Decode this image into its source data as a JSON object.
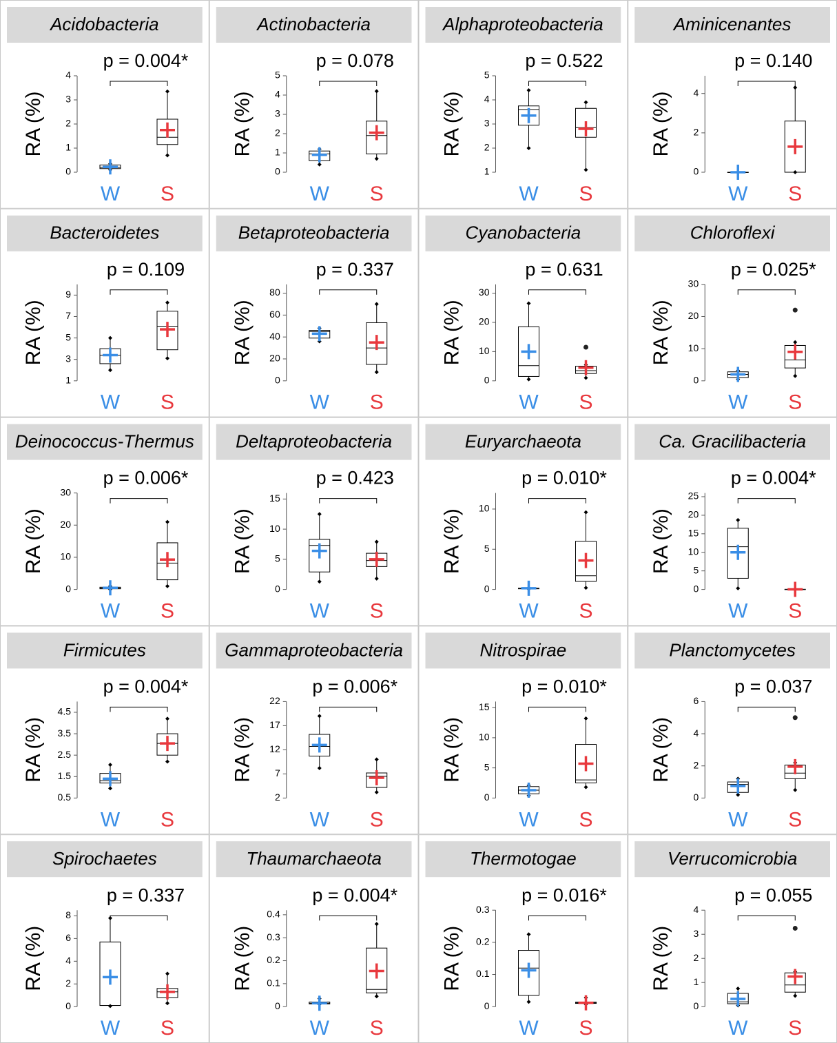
{
  "chart_data": [
    {
      "type": "box",
      "title": "Acidobacteria",
      "annotation": "p = 0.004*",
      "y_label": "RA (%)",
      "categories": [
        "W",
        "S"
      ],
      "ylim": [
        0,
        4
      ],
      "yticks": [
        0,
        1,
        2,
        3,
        4
      ],
      "boxes": [
        {
          "color": "#3a8ee6",
          "min": 0.1,
          "q1": 0.15,
          "median": 0.2,
          "q3": 0.3,
          "max": 0.35,
          "mean": 0.22,
          "outliers": []
        },
        {
          "color": "#e8383d",
          "min": 0.7,
          "q1": 1.15,
          "median": 1.45,
          "q3": 2.2,
          "max": 3.35,
          "mean": 1.75,
          "outliers": []
        }
      ]
    },
    {
      "type": "box",
      "title": "Actinobacteria",
      "annotation": "p = 0.078",
      "y_label": "RA (%)",
      "categories": [
        "W",
        "S"
      ],
      "ylim": [
        0,
        5
      ],
      "yticks": [
        0,
        1,
        2,
        3,
        4,
        5
      ],
      "boxes": [
        {
          "color": "#3a8ee6",
          "min": 0.4,
          "q1": 0.6,
          "median": 0.95,
          "q3": 1.1,
          "max": 1.2,
          "mean": 0.9,
          "outliers": []
        },
        {
          "color": "#e8383d",
          "min": 0.7,
          "q1": 0.95,
          "median": 1.9,
          "q3": 2.65,
          "max": 4.2,
          "mean": 2.05,
          "outliers": []
        }
      ]
    },
    {
      "type": "box",
      "title": "Alphaproteobacteria",
      "annotation": "p = 0.522",
      "y_label": "RA (%)",
      "categories": [
        "W",
        "S"
      ],
      "ylim": [
        1,
        5
      ],
      "yticks": [
        1,
        2,
        3,
        4,
        5
      ],
      "boxes": [
        {
          "color": "#3a8ee6",
          "min": 2.0,
          "q1": 2.95,
          "median": 3.6,
          "q3": 3.75,
          "max": 4.4,
          "mean": 3.35,
          "outliers": []
        },
        {
          "color": "#e8383d",
          "min": 1.1,
          "q1": 2.45,
          "median": 2.85,
          "q3": 3.65,
          "max": 3.9,
          "mean": 2.8,
          "outliers": []
        }
      ]
    },
    {
      "type": "box",
      "title": "Aminicenantes",
      "annotation": "p = 0.140",
      "y_label": "RA (%)",
      "categories": [
        "W",
        "S"
      ],
      "ylim": [
        0,
        4.9
      ],
      "yticks": [
        0,
        2,
        4
      ],
      "boxes": [
        {
          "color": "#3a8ee6",
          "min": 0,
          "q1": 0,
          "median": 0,
          "q3": 0,
          "max": 0,
          "mean": 0,
          "outliers": []
        },
        {
          "color": "#e8383d",
          "min": 0,
          "q1": 0,
          "median": 0,
          "q3": 2.6,
          "max": 4.3,
          "mean": 1.3,
          "outliers": []
        }
      ]
    },
    {
      "type": "box",
      "title": "Bacteroidetes",
      "annotation": "p = 0.109",
      "y_label": "RA (%)",
      "categories": [
        "W",
        "S"
      ],
      "ylim": [
        1,
        10
      ],
      "yticks": [
        1,
        3,
        5,
        7,
        9
      ],
      "boxes": [
        {
          "color": "#3a8ee6",
          "min": 2.0,
          "q1": 2.6,
          "median": 3.4,
          "q3": 4.0,
          "max": 5.0,
          "mean": 3.4,
          "outliers": []
        },
        {
          "color": "#e8383d",
          "min": 3.1,
          "q1": 3.9,
          "median": 6.1,
          "q3": 7.5,
          "max": 8.3,
          "mean": 5.8,
          "outliers": []
        }
      ]
    },
    {
      "type": "box",
      "title": "Betaproteobacteria",
      "annotation": "p = 0.337",
      "y_label": "RA (%)",
      "categories": [
        "W",
        "S"
      ],
      "ylim": [
        0,
        88
      ],
      "yticks": [
        0,
        20,
        40,
        60,
        80
      ],
      "boxes": [
        {
          "color": "#3a8ee6",
          "min": 36,
          "q1": 39,
          "median": 45,
          "q3": 46,
          "max": 48,
          "mean": 43,
          "outliers": []
        },
        {
          "color": "#e8383d",
          "min": 8,
          "q1": 15,
          "median": 30,
          "q3": 53,
          "max": 70,
          "mean": 35,
          "outliers": []
        }
      ]
    },
    {
      "type": "box",
      "title": "Cyanobacteria",
      "annotation": "p = 0.631",
      "y_label": "RA (%)",
      "categories": [
        "W",
        "S"
      ],
      "ylim": [
        0,
        33
      ],
      "yticks": [
        0,
        10,
        20,
        30
      ],
      "boxes": [
        {
          "color": "#3a8ee6",
          "min": 0.5,
          "q1": 1.5,
          "median": 5.2,
          "q3": 18.5,
          "max": 26.5,
          "mean": 10,
          "outliers": []
        },
        {
          "color": "#e8383d",
          "min": 1,
          "q1": 2.5,
          "median": 3.5,
          "q3": 5,
          "max": 5.5,
          "mean": 4.5,
          "outliers": [
            11.5
          ]
        }
      ]
    },
    {
      "type": "box",
      "title": "Chloroflexi",
      "annotation": "p = 0.025*",
      "y_label": "RA (%)",
      "categories": [
        "W",
        "S"
      ],
      "ylim": [
        0,
        30
      ],
      "yticks": [
        0,
        10,
        20,
        30
      ],
      "boxes": [
        {
          "color": "#3a8ee6",
          "min": 0.5,
          "q1": 1,
          "median": 2,
          "q3": 2.8,
          "max": 3.2,
          "mean": 2,
          "outliers": []
        },
        {
          "color": "#e8383d",
          "min": 1.5,
          "q1": 4,
          "median": 6.5,
          "q3": 11,
          "max": 12,
          "mean": 9,
          "outliers": [
            22
          ]
        }
      ]
    },
    {
      "type": "box",
      "title": "Deinococcus-Thermus",
      "annotation": "p = 0.006*",
      "y_label": "RA (%)",
      "categories": [
        "W",
        "S"
      ],
      "ylim": [
        0,
        30
      ],
      "yticks": [
        0,
        10,
        20,
        30
      ],
      "boxes": [
        {
          "color": "#3a8ee6",
          "min": 0,
          "q1": 0.2,
          "median": 0.4,
          "q3": 0.7,
          "max": 1,
          "mean": 0.5,
          "outliers": []
        },
        {
          "color": "#e8383d",
          "min": 1,
          "q1": 3,
          "median": 8.2,
          "q3": 14.5,
          "max": 21,
          "mean": 9.3,
          "outliers": []
        }
      ]
    },
    {
      "type": "box",
      "title": "Deltaproteobacteria",
      "annotation": "p = 0.423",
      "y_label": "RA (%)",
      "categories": [
        "W",
        "S"
      ],
      "ylim": [
        0,
        16
      ],
      "yticks": [
        0,
        5,
        10,
        15
      ],
      "boxes": [
        {
          "color": "#3a8ee6",
          "min": 1.3,
          "q1": 2.9,
          "median": 7.3,
          "q3": 8.3,
          "max": 12.5,
          "mean": 6.4,
          "outliers": []
        },
        {
          "color": "#e8383d",
          "min": 1.8,
          "q1": 3.8,
          "median": 4.8,
          "q3": 6,
          "max": 7.9,
          "mean": 5,
          "outliers": []
        }
      ]
    },
    {
      "type": "box",
      "title": "Euryarchaeota",
      "annotation": "p = 0.010*",
      "y_label": "RA (%)",
      "categories": [
        "W",
        "S"
      ],
      "ylim": [
        0,
        12
      ],
      "yticks": [
        0,
        5,
        10
      ],
      "boxes": [
        {
          "color": "#3a8ee6",
          "min": 0.05,
          "q1": 0.08,
          "median": 0.1,
          "q3": 0.15,
          "max": 0.2,
          "mean": 0.15,
          "outliers": []
        },
        {
          "color": "#e8383d",
          "min": 0.2,
          "q1": 1.0,
          "median": 1.7,
          "q3": 6,
          "max": 9.6,
          "mean": 3.6,
          "outliers": []
        }
      ]
    },
    {
      "type": "box",
      "title": "Ca. Gracilibacteria",
      "annotation": "p = 0.004*",
      "y_label": "RA (%)",
      "categories": [
        "W",
        "S"
      ],
      "ylim": [
        0,
        26
      ],
      "yticks": [
        0,
        5,
        10,
        15,
        20,
        25
      ],
      "boxes": [
        {
          "color": "#3a8ee6",
          "min": 0.3,
          "q1": 3,
          "median": 11.5,
          "q3": 16.5,
          "max": 18.7,
          "mean": 10,
          "outliers": []
        },
        {
          "color": "#e8383d",
          "min": 0,
          "q1": 0,
          "median": 0,
          "q3": 0.05,
          "max": 0.05,
          "mean": 0.02,
          "outliers": []
        }
      ]
    },
    {
      "type": "box",
      "title": "Firmicutes",
      "annotation": "p = 0.004*",
      "y_label": "RA (%)",
      "categories": [
        "W",
        "S"
      ],
      "ylim": [
        0.5,
        5
      ],
      "yticks": [
        0.5,
        1.5,
        2.5,
        3.5,
        4.5
      ],
      "boxes": [
        {
          "color": "#3a8ee6",
          "min": 0.95,
          "q1": 1.2,
          "median": 1.3,
          "q3": 1.65,
          "max": 2.05,
          "mean": 1.4,
          "outliers": []
        },
        {
          "color": "#e8383d",
          "min": 2.2,
          "q1": 2.5,
          "median": 3.05,
          "q3": 3.5,
          "max": 4.2,
          "mean": 3.05,
          "outliers": []
        }
      ]
    },
    {
      "type": "box",
      "title": "Gammaproteobacteria",
      "annotation": "p = 0.006*",
      "y_label": "RA (%)",
      "categories": [
        "W",
        "S"
      ],
      "ylim": [
        2,
        22
      ],
      "yticks": [
        2,
        7,
        12,
        17,
        22
      ],
      "boxes": [
        {
          "color": "#3a8ee6",
          "min": 8.2,
          "q1": 10.7,
          "median": 12.7,
          "q3": 15.2,
          "max": 19,
          "mean": 13,
          "outliers": []
        },
        {
          "color": "#e8383d",
          "min": 3.2,
          "q1": 4.2,
          "median": 6.5,
          "q3": 7.2,
          "max": 10,
          "mean": 6.2,
          "outliers": []
        }
      ]
    },
    {
      "type": "box",
      "title": "Nitrospirae",
      "annotation": "p = 0.010*",
      "y_label": "RA (%)",
      "categories": [
        "W",
        "S"
      ],
      "ylim": [
        0,
        16
      ],
      "yticks": [
        0,
        5,
        10,
        15
      ],
      "boxes": [
        {
          "color": "#3a8ee6",
          "min": 0.4,
          "q1": 0.7,
          "median": 1.3,
          "q3": 1.9,
          "max": 2.1,
          "mean": 1.3,
          "outliers": []
        },
        {
          "color": "#e8383d",
          "min": 1.8,
          "q1": 2.5,
          "median": 3,
          "q3": 8.9,
          "max": 13.2,
          "mean": 5.7,
          "outliers": []
        }
      ]
    },
    {
      "type": "box",
      "title": "Planctomycetes",
      "annotation": "p = 0.037",
      "y_label": "RA (%)",
      "categories": [
        "W",
        "S"
      ],
      "ylim": [
        0,
        6
      ],
      "yticks": [
        0,
        2,
        4,
        6
      ],
      "boxes": [
        {
          "color": "#3a8ee6",
          "min": 0.2,
          "q1": 0.35,
          "median": 0.85,
          "q3": 1.0,
          "max": 1.2,
          "mean": 0.75,
          "outliers": []
        },
        {
          "color": "#e8383d",
          "min": 0.5,
          "q1": 1.2,
          "median": 1.55,
          "q3": 2.05,
          "max": 2.2,
          "mean": 1.95,
          "outliers": [
            5
          ]
        }
      ]
    },
    {
      "type": "box",
      "title": "Spirochaetes",
      "annotation": "p = 0.337",
      "y_label": "RA (%)",
      "categories": [
        "W",
        "S"
      ],
      "ylim": [
        0,
        8.5
      ],
      "yticks": [
        0,
        2,
        4,
        6,
        8
      ],
      "boxes": [
        {
          "color": "#3a8ee6",
          "min": 0.05,
          "q1": 0.1,
          "median": 0.1,
          "q3": 5.7,
          "max": 7.8,
          "mean": 2.6,
          "outliers": []
        },
        {
          "color": "#e8383d",
          "min": 0.3,
          "q1": 0.8,
          "median": 1.3,
          "q3": 1.6,
          "max": 2.9,
          "mean": 1.3,
          "outliers": []
        }
      ]
    },
    {
      "type": "box",
      "title": "Thaumarchaeota",
      "annotation": "p = 0.004*",
      "y_label": "RA (%)",
      "categories": [
        "W",
        "S"
      ],
      "ylim": [
        0,
        0.42
      ],
      "yticks": [
        0,
        0.1,
        0.2,
        0.3,
        0.4
      ],
      "boxes": [
        {
          "color": "#3a8ee6",
          "min": 0.01,
          "q1": 0.012,
          "median": 0.015,
          "q3": 0.02,
          "max": 0.035,
          "mean": 0.015,
          "outliers": []
        },
        {
          "color": "#e8383d",
          "min": 0.045,
          "q1": 0.06,
          "median": 0.075,
          "q3": 0.255,
          "max": 0.36,
          "mean": 0.155,
          "outliers": []
        }
      ]
    },
    {
      "type": "box",
      "title": "Thermotogae",
      "annotation": "p = 0.016*",
      "y_label": "RA (%)",
      "categories": [
        "W",
        "S"
      ],
      "ylim": [
        0,
        0.3
      ],
      "yticks": [
        0,
        0.1,
        0.2,
        0.3
      ],
      "boxes": [
        {
          "color": "#3a8ee6",
          "min": 0.015,
          "q1": 0.035,
          "median": 0.12,
          "q3": 0.175,
          "max": 0.225,
          "mean": 0.113,
          "outliers": []
        },
        {
          "color": "#e8383d",
          "min": 0.007,
          "q1": 0.01,
          "median": 0.012,
          "q3": 0.014,
          "max": 0.028,
          "mean": 0.012,
          "outliers": []
        }
      ]
    },
    {
      "type": "box",
      "title": "Verrucomicrobia",
      "annotation": "p = 0.055",
      "y_label": "RA (%)",
      "categories": [
        "W",
        "S"
      ],
      "ylim": [
        0,
        4
      ],
      "yticks": [
        0,
        1,
        2,
        3,
        4
      ],
      "boxes": [
        {
          "color": "#3a8ee6",
          "min": 0.05,
          "q1": 0.12,
          "median": 0.2,
          "q3": 0.55,
          "max": 0.75,
          "mean": 0.32,
          "outliers": []
        },
        {
          "color": "#e8383d",
          "min": 0.45,
          "q1": 0.6,
          "median": 0.9,
          "q3": 1.4,
          "max": 1.45,
          "mean": 1.25,
          "outliers": [
            3.25
          ]
        }
      ]
    }
  ]
}
